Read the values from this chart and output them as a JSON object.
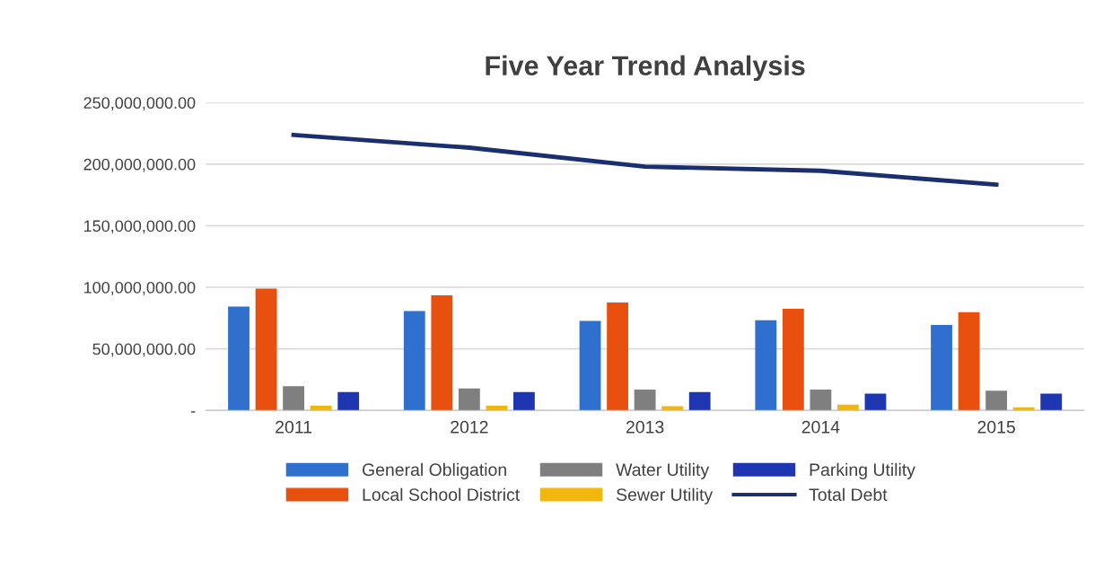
{
  "chart_data": {
    "type": "bar",
    "title": "Five Year Trend Analysis",
    "categories": [
      "2011",
      "2012",
      "2013",
      "2014",
      "2015"
    ],
    "series": [
      {
        "name": "General Obligation",
        "color": "#2f70cf",
        "values": [
          84400000,
          80700000,
          72700000,
          73200000,
          69400000
        ]
      },
      {
        "name": "Local School District",
        "color": "#e9500e",
        "values": [
          99000000,
          93400000,
          87700000,
          82600000,
          79800000
        ]
      },
      {
        "name": "Water Utility",
        "color": "#7f7f7f",
        "values": [
          19700000,
          17900000,
          16900000,
          16900000,
          16000000
        ]
      },
      {
        "name": "Sewer Utility",
        "color": "#f2b70c",
        "values": [
          3800000,
          3800000,
          3500000,
          4700000,
          2500000
        ]
      },
      {
        "name": "Parking Utility",
        "color": "#1f36b3",
        "values": [
          15000000,
          15000000,
          15000000,
          13600000,
          13600000
        ]
      },
      {
        "name": "Total Debt",
        "type": "line",
        "color": "#1b2f6e",
        "values": [
          223700000,
          213400000,
          198000000,
          194600000,
          183400000
        ]
      }
    ],
    "ylim": [
      0,
      250000000
    ],
    "yticks": [
      {
        "value": 0,
        "label": "-"
      },
      {
        "value": 50000000,
        "label": "50,000,000.00"
      },
      {
        "value": 100000000,
        "label": "100,000,000.00"
      },
      {
        "value": 150000000,
        "label": "150,000,000.00"
      },
      {
        "value": 200000000,
        "label": "200,000,000.00"
      },
      {
        "value": 250000000,
        "label": "250,000,000.00"
      }
    ],
    "grid": "y",
    "legend": "bottom"
  }
}
